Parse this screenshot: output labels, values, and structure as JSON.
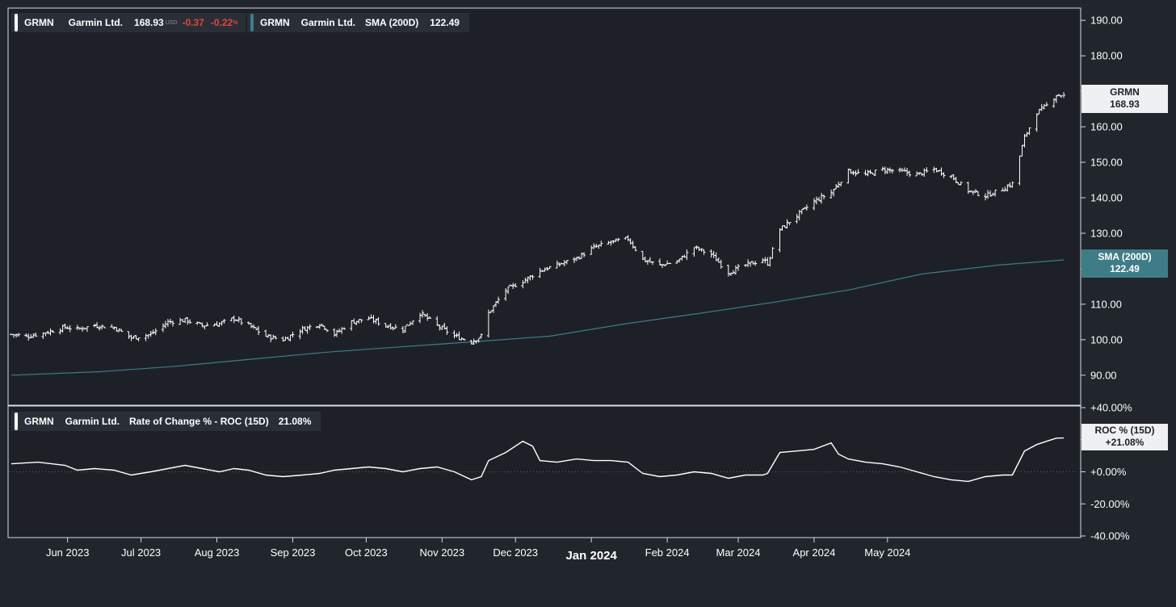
{
  "legend_main": {
    "symbol": "GRMN",
    "name": "Garmin Ltd.",
    "price": "168.93",
    "currency": "USD",
    "change": "-0.37",
    "change_pct": "-0.22",
    "pct_sign": "%",
    "color": "#ffffff"
  },
  "legend_sma": {
    "symbol": "GRMN",
    "name": "Garmin Ltd.",
    "indicator": "SMA (200D)",
    "value": "122.49",
    "color": "#3e7d88"
  },
  "legend_roc": {
    "symbol": "GRMN",
    "name": "Garmin Ltd.",
    "indicator": "Rate of Change % - ROC (15D)",
    "value": "21.08%",
    "color": "#ffffff"
  },
  "tags": {
    "price_label": "GRMN",
    "price_value": "168.93",
    "sma_label": "SMA (200D)",
    "sma_value": "122.49",
    "roc_label": "ROC % (15D)",
    "roc_value": "+21.08%"
  },
  "chart_data": {
    "type": "line",
    "x_tick_labels": [
      "Jun 2023",
      "Jul 2023",
      "Aug 2023",
      "Sep 2023",
      "Oct 2023",
      "Nov 2023",
      "Dec 2023",
      "Jan 2024",
      "Feb 2024",
      "Mar 2024",
      "Apr 2024",
      "May 2024"
    ],
    "x_tick_dates": [
      "2023-06-01",
      "2023-07-01",
      "2023-08-01",
      "2023-09-01",
      "2023-10-01",
      "2023-11-01",
      "2023-12-01",
      "2024-01-01",
      "2024-02-01",
      "2024-03-01",
      "2024-04-01",
      "2024-05-01"
    ],
    "x_range": [
      "2023-05-09",
      "2024-05-13"
    ],
    "price_panel": {
      "ylim": [
        82,
        193
      ],
      "y_ticks": [
        "90.00",
        "100.00",
        "110.00",
        "120.00",
        "130.00",
        "140.00",
        "150.00",
        "160.00",
        "170.00",
        "180.00",
        "190.00"
      ],
      "series": [
        {
          "kind": "ohlc-close",
          "color": "#ffffff",
          "points": [
            [
              "2023-05-09",
              101.5
            ],
            [
              "2023-05-16",
              101
            ],
            [
              "2023-05-23",
              102
            ],
            [
              "2023-05-31",
              103.5
            ],
            [
              "2023-06-05",
              103
            ],
            [
              "2023-06-12",
              104
            ],
            [
              "2023-06-20",
              103.5
            ],
            [
              "2023-06-27",
              100.5
            ],
            [
              "2023-07-05",
              101.5
            ],
            [
              "2023-07-12",
              105
            ],
            [
              "2023-07-19",
              105.5
            ],
            [
              "2023-07-26",
              104
            ],
            [
              "2023-08-02",
              104.5
            ],
            [
              "2023-08-08",
              106
            ],
            [
              "2023-08-14",
              104
            ],
            [
              "2023-08-21",
              101
            ],
            [
              "2023-08-28",
              100
            ],
            [
              "2023-09-05",
              103
            ],
            [
              "2023-09-12",
              104.5
            ],
            [
              "2023-09-18",
              101.5
            ],
            [
              "2023-09-25",
              105
            ],
            [
              "2023-10-02",
              106
            ],
            [
              "2023-10-09",
              104
            ],
            [
              "2023-10-16",
              103
            ],
            [
              "2023-10-23",
              107.5
            ],
            [
              "2023-10-30",
              104
            ],
            [
              "2023-11-06",
              101
            ],
            [
              "2023-11-13",
              99.5
            ],
            [
              "2023-11-17",
              101
            ],
            [
              "2023-11-20",
              107.5
            ],
            [
              "2023-11-27",
              114
            ],
            [
              "2023-12-04",
              116.5
            ],
            [
              "2023-12-11",
              119.5
            ],
            [
              "2023-12-18",
              121
            ],
            [
              "2023-12-26",
              123
            ],
            [
              "2024-01-02",
              126
            ],
            [
              "2024-01-09",
              127.5
            ],
            [
              "2024-01-16",
              128.5
            ],
            [
              "2024-01-22",
              122.5
            ],
            [
              "2024-01-29",
              121
            ],
            [
              "2024-02-05",
              122
            ],
            [
              "2024-02-12",
              126
            ],
            [
              "2024-02-19",
              124
            ],
            [
              "2024-02-26",
              119
            ],
            [
              "2024-03-04",
              121
            ],
            [
              "2024-03-11",
              122.5
            ],
            [
              "2024-03-13",
              121.5
            ],
            [
              "2024-03-18",
              131
            ],
            [
              "2024-03-25",
              135
            ],
            [
              "2024-04-01",
              139
            ],
            [
              "2024-04-08",
              141.5
            ],
            [
              "2024-04-15",
              147.5
            ],
            [
              "2024-04-22",
              146.5
            ],
            [
              "2024-04-29",
              148
            ],
            [
              "2024-05-06",
              147.5
            ],
            [
              "2024-05-13",
              146.5
            ],
            [
              "2024-05-20",
              148
            ],
            [
              "2024-05-27",
              146
            ],
            [
              "2024-06-03",
              142
            ],
            [
              "2024-06-10",
              140.5
            ],
            [
              "2024-06-17",
              142.5
            ],
            [
              "2024-06-21",
              144
            ],
            [
              "2024-06-26",
              157
            ],
            [
              "2024-07-01",
              164
            ],
            [
              "2024-07-05",
              166
            ],
            [
              "2024-07-09",
              169
            ],
            [
              "2024-07-12",
              168.93
            ]
          ]
        },
        {
          "kind": "line",
          "name": "SMA (200D)",
          "color": "#3e7d88",
          "points": [
            [
              "2023-05-09",
              90
            ],
            [
              "2023-06-15",
              91
            ],
            [
              "2023-07-15",
              92.5
            ],
            [
              "2023-08-15",
              94.5
            ],
            [
              "2023-09-15",
              96.5
            ],
            [
              "2023-10-15",
              98
            ],
            [
              "2023-11-15",
              99.5
            ],
            [
              "2023-12-15",
              101
            ],
            [
              "2024-01-15",
              104.5
            ],
            [
              "2024-02-15",
              107.5
            ],
            [
              "2024-03-15",
              110.5
            ],
            [
              "2024-04-15",
              114
            ],
            [
              "2024-05-15",
              118.5
            ],
            [
              "2024-06-15",
              121
            ],
            [
              "2024-07-12",
              122.49
            ]
          ]
        }
      ]
    },
    "roc_panel": {
      "ylim": [
        -40,
        40
      ],
      "y_ticks": [
        "-40.00%",
        "-20.00%",
        "+0.00%",
        "+20.00%",
        "+40.00%"
      ],
      "series": [
        {
          "kind": "line",
          "name": "ROC % (15D)",
          "color": "#ffffff",
          "points": [
            [
              "2023-05-09",
              5
            ],
            [
              "2023-05-20",
              6
            ],
            [
              "2023-05-31",
              4
            ],
            [
              "2023-06-05",
              1
            ],
            [
              "2023-06-12",
              2
            ],
            [
              "2023-06-20",
              1
            ],
            [
              "2023-06-27",
              -2
            ],
            [
              "2023-07-05",
              0
            ],
            [
              "2023-07-12",
              2
            ],
            [
              "2023-07-19",
              4
            ],
            [
              "2023-07-26",
              2
            ],
            [
              "2023-08-02",
              0
            ],
            [
              "2023-08-08",
              2
            ],
            [
              "2023-08-14",
              1
            ],
            [
              "2023-08-21",
              -2
            ],
            [
              "2023-08-28",
              -3
            ],
            [
              "2023-09-05",
              -2
            ],
            [
              "2023-09-12",
              -1
            ],
            [
              "2023-09-18",
              1
            ],
            [
              "2023-09-25",
              2
            ],
            [
              "2023-10-02",
              3
            ],
            [
              "2023-10-09",
              2
            ],
            [
              "2023-10-16",
              0
            ],
            [
              "2023-10-23",
              2
            ],
            [
              "2023-10-30",
              3
            ],
            [
              "2023-11-06",
              0
            ],
            [
              "2023-11-13",
              -5
            ],
            [
              "2023-11-17",
              -3
            ],
            [
              "2023-11-20",
              7
            ],
            [
              "2023-11-27",
              12
            ],
            [
              "2023-12-04",
              19
            ],
            [
              "2023-12-08",
              16
            ],
            [
              "2023-12-11",
              7
            ],
            [
              "2023-12-18",
              6
            ],
            [
              "2023-12-26",
              8
            ],
            [
              "2024-01-02",
              7
            ],
            [
              "2024-01-09",
              7
            ],
            [
              "2024-01-16",
              6
            ],
            [
              "2024-01-22",
              -1
            ],
            [
              "2024-01-29",
              -3
            ],
            [
              "2024-02-05",
              -2
            ],
            [
              "2024-02-12",
              0
            ],
            [
              "2024-02-19",
              -1
            ],
            [
              "2024-02-26",
              -4
            ],
            [
              "2024-03-04",
              -2
            ],
            [
              "2024-03-11",
              -2
            ],
            [
              "2024-03-13",
              -1
            ],
            [
              "2024-03-18",
              12
            ],
            [
              "2024-03-25",
              13
            ],
            [
              "2024-04-01",
              14
            ],
            [
              "2024-04-08",
              18
            ],
            [
              "2024-04-11",
              11
            ],
            [
              "2024-04-15",
              8
            ],
            [
              "2024-04-22",
              6
            ],
            [
              "2024-04-29",
              5
            ],
            [
              "2024-05-06",
              3
            ],
            [
              "2024-05-13",
              0
            ],
            [
              "2024-05-20",
              -3
            ],
            [
              "2024-05-27",
              -5
            ],
            [
              "2024-06-03",
              -6
            ],
            [
              "2024-06-10",
              -3
            ],
            [
              "2024-06-17",
              -2
            ],
            [
              "2024-06-21",
              -2
            ],
            [
              "2024-06-26",
              13
            ],
            [
              "2024-07-01",
              17
            ],
            [
              "2024-07-05",
              19
            ],
            [
              "2024-07-09",
              21
            ],
            [
              "2024-07-12",
              21.08
            ]
          ]
        }
      ]
    }
  }
}
